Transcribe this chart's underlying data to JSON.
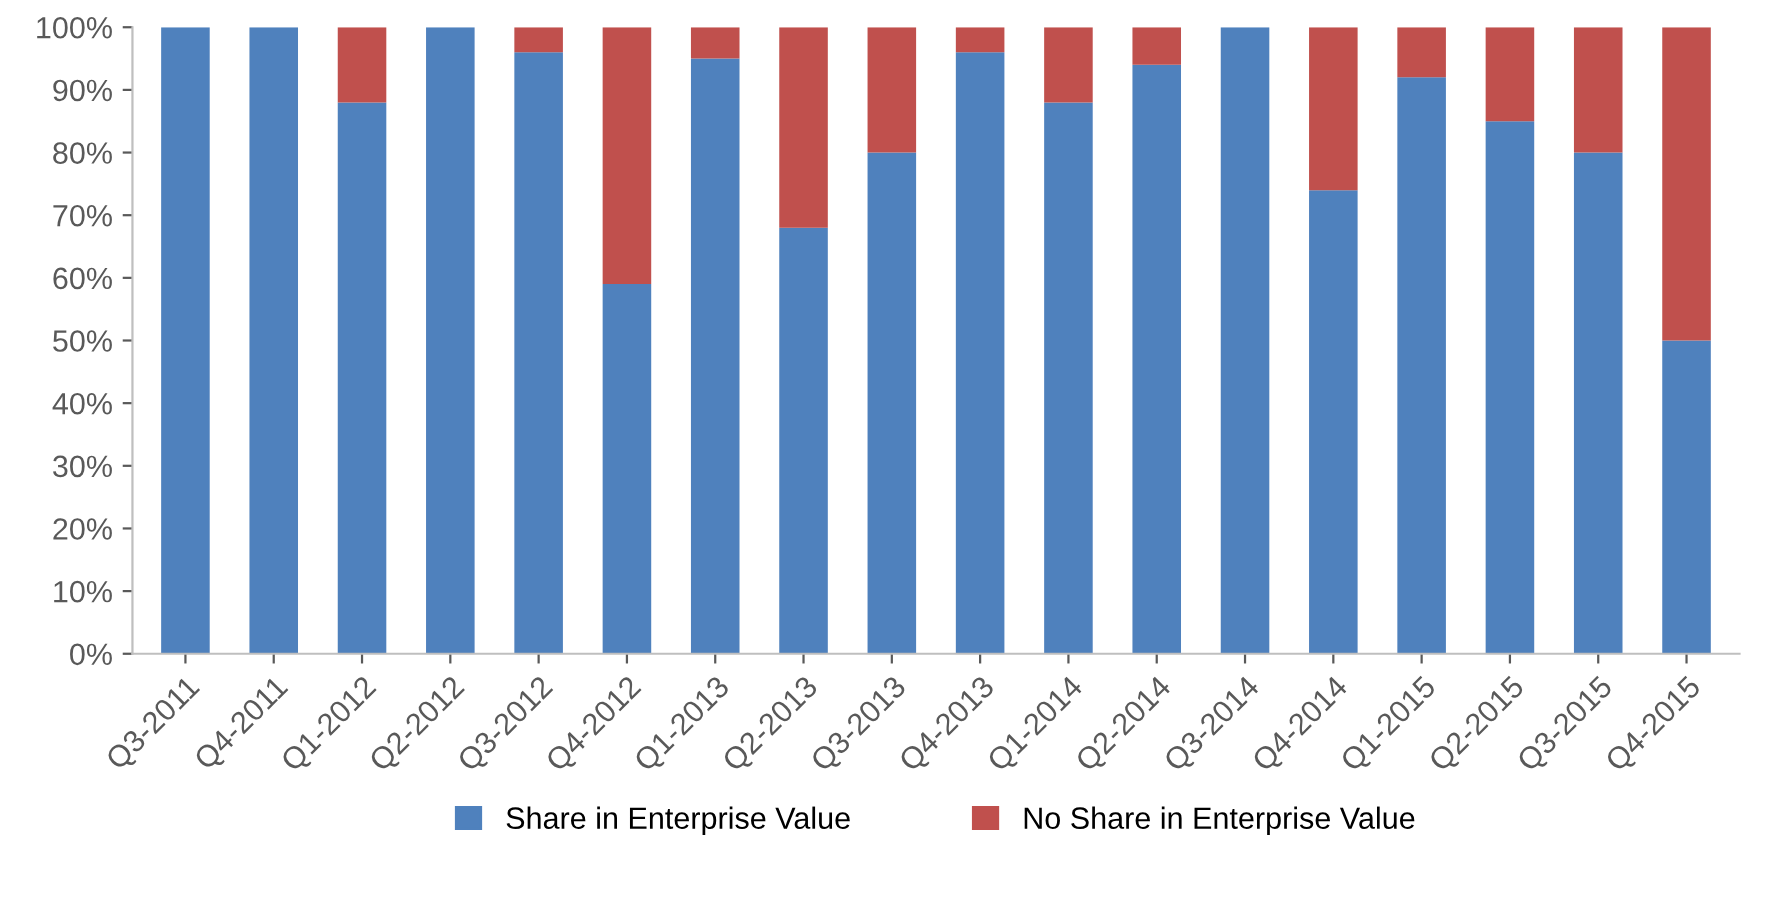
{
  "chart_data": {
    "type": "bar",
    "stacked": true,
    "categories": [
      "Q3-2011",
      "Q4-2011",
      "Q1-2012",
      "Q2-2012",
      "Q3-2012",
      "Q4-2012",
      "Q1-2013",
      "Q2-2013",
      "Q3-2013",
      "Q4-2013",
      "Q1-2014",
      "Q2-2014",
      "Q3-2014",
      "Q4-2014",
      "Q1-2015",
      "Q2-2015",
      "Q3-2015",
      "Q4-2015"
    ],
    "series": [
      {
        "name": "Share in Enterprise Value",
        "color": "#4f81bd",
        "values": [
          100,
          100,
          88,
          100,
          96,
          59,
          95,
          68,
          80,
          96,
          88,
          94,
          100,
          74,
          92,
          85,
          80,
          50
        ]
      },
      {
        "name": "No Share in Enterprise Value",
        "color": "#c0504d",
        "values": [
          0,
          0,
          12,
          0,
          4,
          41,
          5,
          32,
          20,
          4,
          12,
          6,
          0,
          26,
          8,
          15,
          20,
          50
        ]
      }
    ],
    "ylim": [
      0,
      100
    ],
    "yticks": [
      {
        "value": 0,
        "label": "0%"
      },
      {
        "value": 10,
        "label": "10%"
      },
      {
        "value": 20,
        "label": "20%"
      },
      {
        "value": 30,
        "label": "30%"
      },
      {
        "value": 40,
        "label": "40%"
      },
      {
        "value": 50,
        "label": "50%"
      },
      {
        "value": 60,
        "label": "60%"
      },
      {
        "value": 70,
        "label": "70%"
      },
      {
        "value": 80,
        "label": "80%"
      },
      {
        "value": 90,
        "label": "90%"
      },
      {
        "value": 100,
        "label": "100%"
      }
    ],
    "grid": false,
    "legend": "bottom"
  }
}
